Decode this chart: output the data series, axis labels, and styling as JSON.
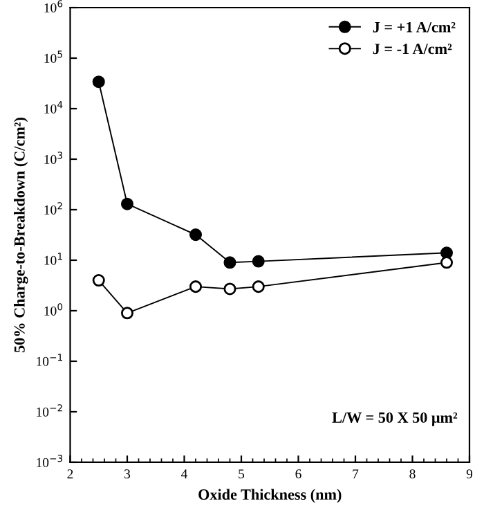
{
  "chart_data": {
    "type": "line",
    "xlabel": "Oxide Thickness (nm)",
    "ylabel": "50% Charge-to-Breakdown (C/cm²)",
    "annotations": [
      "L/W = 50 X 50 μm²"
    ],
    "x": [
      2.5,
      3.0,
      4.2,
      4.8,
      5.3,
      8.6
    ],
    "series": [
      {
        "name": "J = +1 A/cm²",
        "color": "#000000",
        "values": [
          34000,
          130,
          32,
          9,
          9.5,
          14
        ]
      },
      {
        "name": "J = -1 A/cm²",
        "color": "#000000",
        "values": [
          4,
          0.9,
          3,
          2.7,
          3,
          9
        ]
      }
    ],
    "log": "y",
    "xlim": [
      2,
      9
    ],
    "xticks": [
      2,
      3,
      4,
      5,
      6,
      7,
      8,
      9
    ],
    "ylim": [
      0.001,
      1000000
    ],
    "yticks": [
      {
        "value": 0.001,
        "label": "10$^{−3}$"
      },
      {
        "value": 0.01,
        "label": "10$^{−2}$"
      },
      {
        "value": 0.1,
        "label": "10$^{−1}$"
      },
      {
        "value": 1,
        "label": "10$^{0}$"
      },
      {
        "value": 10,
        "label": "10$^{1}$"
      },
      {
        "value": 100,
        "label": "10$^{2}$"
      },
      {
        "value": 1000,
        "label": "10$^{3}$"
      },
      {
        "value": 10000,
        "label": "10$^{4}$"
      },
      {
        "value": 100000,
        "label": "10$^{5}$"
      },
      {
        "value": 1000000,
        "label": "10$^{6}$"
      }
    ],
    "marker": "circle",
    "line_style": "solid",
    "legend": "top right",
    "grid": false
  }
}
